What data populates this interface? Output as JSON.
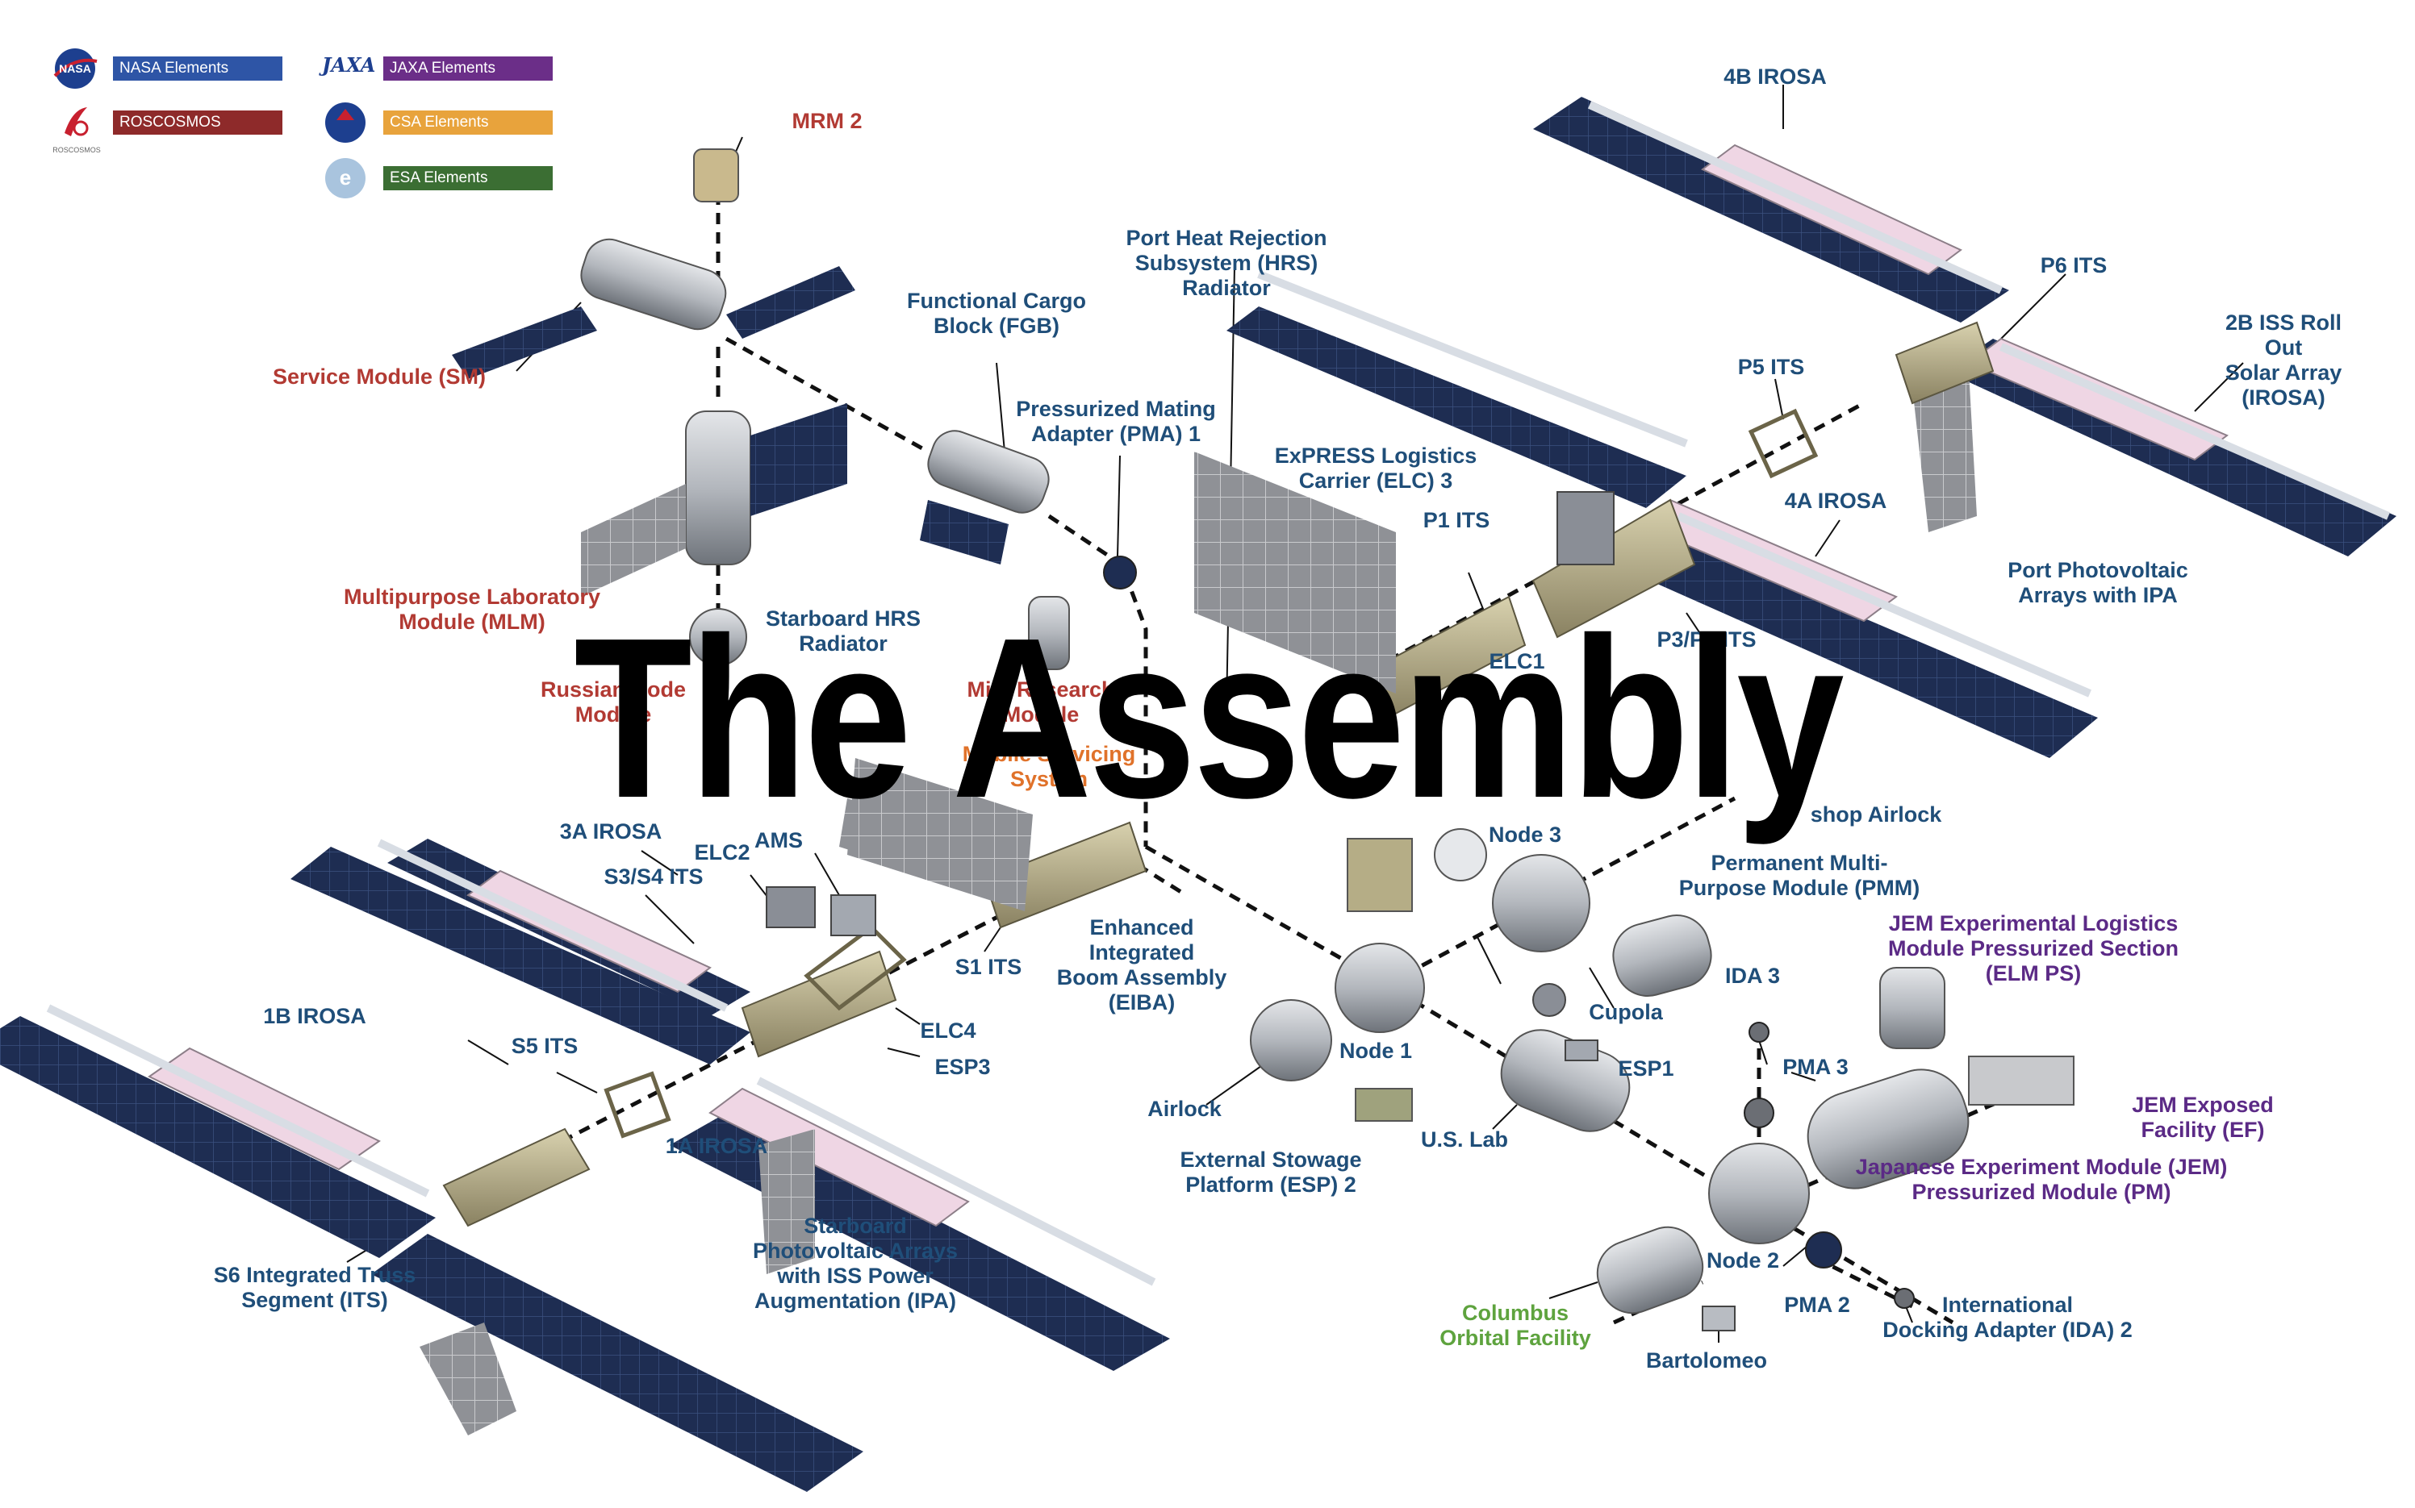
{
  "colors": {
    "nasa": "#2E55A6",
    "roscosmos": "#8E2A2A",
    "jaxa": "#6B2E88",
    "csa": "#E8A33C",
    "esa": "#3B6E33",
    "blue_label": "#1F4E79",
    "red_label": "#B23A33",
    "purple_label": "#5B2A86",
    "green_label": "#5EA33E",
    "orange_label": "#E0722A",
    "panel_dark": "#1E2D52",
    "panel_pink": "#EFD6E4",
    "truss": "#B5AD86",
    "module": "#B8BCC2",
    "dash_line": "#111111"
  },
  "legend": [
    {
      "label": "NASA Elements",
      "logo": "nasa-logo",
      "color_key": "nasa"
    },
    {
      "label": "ROSCOSMOS Elements",
      "logo": "roscosmos-logo",
      "color_key": "roscosmos",
      "logo_caption": "ROSCOSMOS"
    },
    {
      "label": "JAXA Elements",
      "logo": "jaxa-logo",
      "color_key": "jaxa",
      "logo_text": "JAXA"
    },
    {
      "label": "CSA Elements",
      "logo": "csa-logo",
      "color_key": "csa"
    },
    {
      "label": "ESA Elements",
      "logo": "esa-logo",
      "color_key": "esa"
    }
  ],
  "headline": "The Assembly",
  "labels": {
    "mrm2": {
      "text": "MRM 2",
      "color_key": "red_label"
    },
    "service_module": {
      "text": "Service Module (SM)",
      "color_key": "red_label"
    },
    "mlm": {
      "text": "Multipurpose Laboratory\nModule (MLM)",
      "color_key": "red_label"
    },
    "russian_node": {
      "text": "Russian Node\nModule",
      "color_key": "red_label"
    },
    "mini_research": {
      "text": "Mini Research\nModule",
      "color_key": "red_label"
    },
    "mobile_servicing": {
      "text": "Mobile Servicing\nSystem",
      "color_key": "orange_label"
    },
    "fgb": {
      "text": "Functional Cargo\nBlock (FGB)",
      "color_key": "blue_label"
    },
    "pma1": {
      "text": "Pressurized Mating\nAdapter (PMA) 1",
      "color_key": "blue_label"
    },
    "port_hrs": {
      "text": "Port Heat Rejection\nSubsystem (HRS)\nRadiator",
      "color_key": "blue_label"
    },
    "starboard_hrs": {
      "text": "Starboard HRS\nRadiator",
      "color_key": "blue_label"
    },
    "elc3": {
      "text": "ExPRESS Logistics\nCarrier (ELC) 3",
      "color_key": "blue_label"
    },
    "p1_its": {
      "text": "P1 ITS",
      "color_key": "blue_label"
    },
    "elc1": {
      "text": "ELC1",
      "color_key": "blue_label"
    },
    "p3p4_its": {
      "text": "P3/P4 ITS",
      "color_key": "blue_label"
    },
    "p5_its": {
      "text": "P5 ITS",
      "color_key": "blue_label"
    },
    "p6_its": {
      "text": "P6 ITS",
      "color_key": "blue_label"
    },
    "irosa_4b": {
      "text": "4B IROSA",
      "color_key": "blue_label"
    },
    "irosa_4a": {
      "text": "4A IROSA",
      "color_key": "blue_label"
    },
    "roll_out": {
      "text": "2B ISS Roll Out\nSolar Array (IROSA)",
      "color_key": "blue_label"
    },
    "port_pv": {
      "text": "Port Photovoltaic\nArrays with IPA",
      "color_key": "blue_label"
    },
    "quest_airlock": {
      "text": "shop Airlock",
      "color_key": "blue_label"
    },
    "node3": {
      "text": "Node 3",
      "color_key": "blue_label"
    },
    "pmm": {
      "text": "Permanent Multi-\nPurpose Module (PMM)",
      "color_key": "blue_label"
    },
    "cupola": {
      "text": "Cupola",
      "color_key": "blue_label"
    },
    "esp1": {
      "text": "ESP1",
      "color_key": "blue_label"
    },
    "node1": {
      "text": "Node 1",
      "color_key": "blue_label"
    },
    "airlock": {
      "text": "Airlock",
      "color_key": "blue_label"
    },
    "esp2": {
      "text": "External Stowage\nPlatform (ESP) 2",
      "color_key": "blue_label"
    },
    "us_lab": {
      "text": "U.S. Lab",
      "color_key": "blue_label"
    },
    "ida3": {
      "text": "IDA 3",
      "color_key": "blue_label"
    },
    "pma3": {
      "text": "PMA 3",
      "color_key": "blue_label"
    },
    "node2": {
      "text": "Node 2",
      "color_key": "blue_label"
    },
    "pma2": {
      "text": "PMA 2",
      "color_key": "blue_label"
    },
    "ida2": {
      "text": "International\nDocking Adapter (IDA) 2",
      "color_key": "blue_label"
    },
    "columbus": {
      "text": "Columbus\nOrbital Facility",
      "color_key": "green_label"
    },
    "bartolomeo": {
      "text": "Bartolomeo",
      "color_key": "blue_label"
    },
    "elm_ps": {
      "text": "JEM Experimental Logistics\nModule Pressurized Section\n(ELM PS)",
      "color_key": "purple_label"
    },
    "jem_ef": {
      "text": "JEM Exposed Facility (EF)",
      "color_key": "purple_label"
    },
    "jem_pm": {
      "text": "Japanese Experiment Module (JEM)\nPressurized Module (PM)",
      "color_key": "purple_label"
    },
    "irosa_3a": {
      "text": "3A IROSA",
      "color_key": "blue_label"
    },
    "s3s4_its": {
      "text": "S3/S4 ITS",
      "color_key": "blue_label"
    },
    "elc2": {
      "text": "ELC2",
      "color_key": "blue_label"
    },
    "ams": {
      "text": "AMS",
      "color_key": "blue_label"
    },
    "s1_its": {
      "text": "S1 ITS",
      "color_key": "blue_label"
    },
    "eiba": {
      "text": "Enhanced\nIntegrated\nBoom Assembly\n(EIBA)",
      "color_key": "blue_label"
    },
    "elc4": {
      "text": "ELC4",
      "color_key": "blue_label"
    },
    "esp3": {
      "text": "ESP3",
      "color_key": "blue_label"
    },
    "irosa_1b": {
      "text": "1B IROSA",
      "color_key": "blue_label"
    },
    "s5_its": {
      "text": "S5 ITS",
      "color_key": "blue_label"
    },
    "irosa_1a": {
      "text": "1A IROSA",
      "color_key": "blue_label"
    },
    "s6_its": {
      "text": "S6 Integrated Truss\nSegment (ITS)",
      "color_key": "blue_label"
    },
    "starboard_pv": {
      "text": "Starboard\nPhotovoltaic Arrays\nwith ISS Power\nAugmentation (IPA)",
      "color_key": "blue_label"
    }
  }
}
